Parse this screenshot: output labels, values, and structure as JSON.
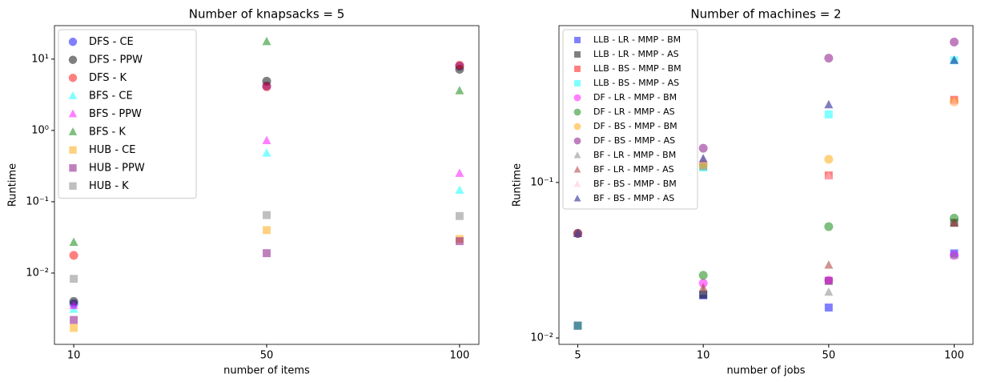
{
  "chart_data": [
    {
      "type": "scatter",
      "title": "Number of knapsacks = 5",
      "xlabel": "number of items",
      "ylabel": "Runtime",
      "categories": [
        "10",
        "50",
        "100"
      ],
      "log_scale": "y",
      "legend": "upper left",
      "ylim": [
        0.001,
        29.5
      ],
      "yticks": [
        {
          "value": 0.01,
          "label": "10⁻²"
        },
        {
          "value": 0.1,
          "label": "10⁻¹"
        },
        {
          "value": 1,
          "label": "10⁰"
        },
        {
          "value": 10,
          "label": "10¹"
        }
      ],
      "series": [
        {
          "name": "DFS - CE",
          "color": "#0000ff",
          "marker": "circle",
          "values": [
            0.0037,
            4.2,
            8.0
          ]
        },
        {
          "name": "DFS - PPW",
          "color": "#000000",
          "marker": "circle",
          "values": [
            0.004,
            4.9,
            7.2
          ]
        },
        {
          "name": "DFS - K",
          "color": "#ff0000",
          "marker": "circle",
          "values": [
            0.0177,
            4.1,
            8.2
          ]
        },
        {
          "name": "BFS - CE",
          "color": "#00ffff",
          "marker": "triangle",
          "values": [
            0.0031,
            0.48,
            0.145
          ]
        },
        {
          "name": "BFS - PPW",
          "color": "#ff00ff",
          "marker": "triangle",
          "values": [
            0.0035,
            0.72,
            0.25
          ]
        },
        {
          "name": "BFS - K",
          "color": "#008000",
          "marker": "triangle",
          "values": [
            0.027,
            17.6,
            3.6
          ]
        },
        {
          "name": "HUB - CE",
          "color": "#ffa500",
          "marker": "square",
          "values": [
            0.0017,
            0.04,
            0.03
          ]
        },
        {
          "name": "HUB - PPW",
          "color": "#800080",
          "marker": "square",
          "values": [
            0.0022,
            0.019,
            0.028
          ]
        },
        {
          "name": "HUB - K",
          "color": "#808080",
          "marker": "square",
          "values": [
            0.0083,
            0.065,
            0.063
          ]
        }
      ]
    },
    {
      "type": "scatter",
      "title": "Number of machines  = 2",
      "xlabel": "number of jobs",
      "ylabel": "Runtime",
      "categories": [
        "5",
        "10",
        "50",
        "100"
      ],
      "log_scale": "y",
      "legend": "upper left",
      "ylim": [
        0.0091,
        1.02
      ],
      "yticks": [
        {
          "value": 0.01,
          "label": "10⁻²"
        },
        {
          "value": 0.1,
          "label": "10⁻¹"
        }
      ],
      "series": [
        {
          "name": "LLB - LR - MMP - BM",
          "color": "#0000ff",
          "marker": "square",
          "values": [
            0.012,
            0.0188,
            0.0157,
            0.035
          ]
        },
        {
          "name": "LLB - LR - MMP - AS",
          "color": "#000000",
          "marker": "square",
          "values": [
            0.012,
            0.019,
            0.0233,
            0.055
          ]
        },
        {
          "name": "LLB - BS - MMP - BM",
          "color": "#ff0000",
          "marker": "square",
          "values": [
            0.012,
            0.127,
            0.111,
            0.34
          ]
        },
        {
          "name": "LLB - BS - MMP - AS",
          "color": "#00ffff",
          "marker": "square",
          "values": [
            0.012,
            0.125,
            0.274,
            0.61
          ]
        },
        {
          "name": "DF - LR - MMP - BM",
          "color": "#ff00ff",
          "marker": "circle",
          "values": [
            0.047,
            0.0225,
            0.0235,
            0.034
          ]
        },
        {
          "name": "DF - LR - MMP - AS",
          "color": "#008000",
          "marker": "circle",
          "values": [
            0.047,
            0.0253,
            0.052,
            0.059
          ]
        },
        {
          "name": "DF - BS - MMP - BM",
          "color": "#ffa500",
          "marker": "circle",
          "values": [
            0.047,
            0.13,
            0.141,
            0.33
          ]
        },
        {
          "name": "DF - BS - MMP - AS",
          "color": "#800080",
          "marker": "circle",
          "values": [
            0.047,
            0.166,
            0.63,
            0.8
          ]
        },
        {
          "name": "BF - LR - MMP - BM",
          "color": "#808080",
          "marker": "triangle",
          "values": [
            0.047,
            0.02,
            0.0197,
            0.034
          ]
        },
        {
          "name": "BF - LR - MMP - AS",
          "color": "#a52a2a",
          "marker": "triangle",
          "values": [
            0.047,
            0.021,
            0.0294,
            0.055
          ]
        },
        {
          "name": "BF - BS - MMP - BM",
          "color": "#ffc0cb",
          "marker": "triangle",
          "values": [
            0.047,
            0.14,
            0.11,
            0.33
          ]
        },
        {
          "name": "BF - BS - MMP - AS",
          "color": "#000080",
          "marker": "triangle",
          "values": [
            0.047,
            0.142,
            0.316,
            0.61
          ]
        }
      ]
    }
  ]
}
